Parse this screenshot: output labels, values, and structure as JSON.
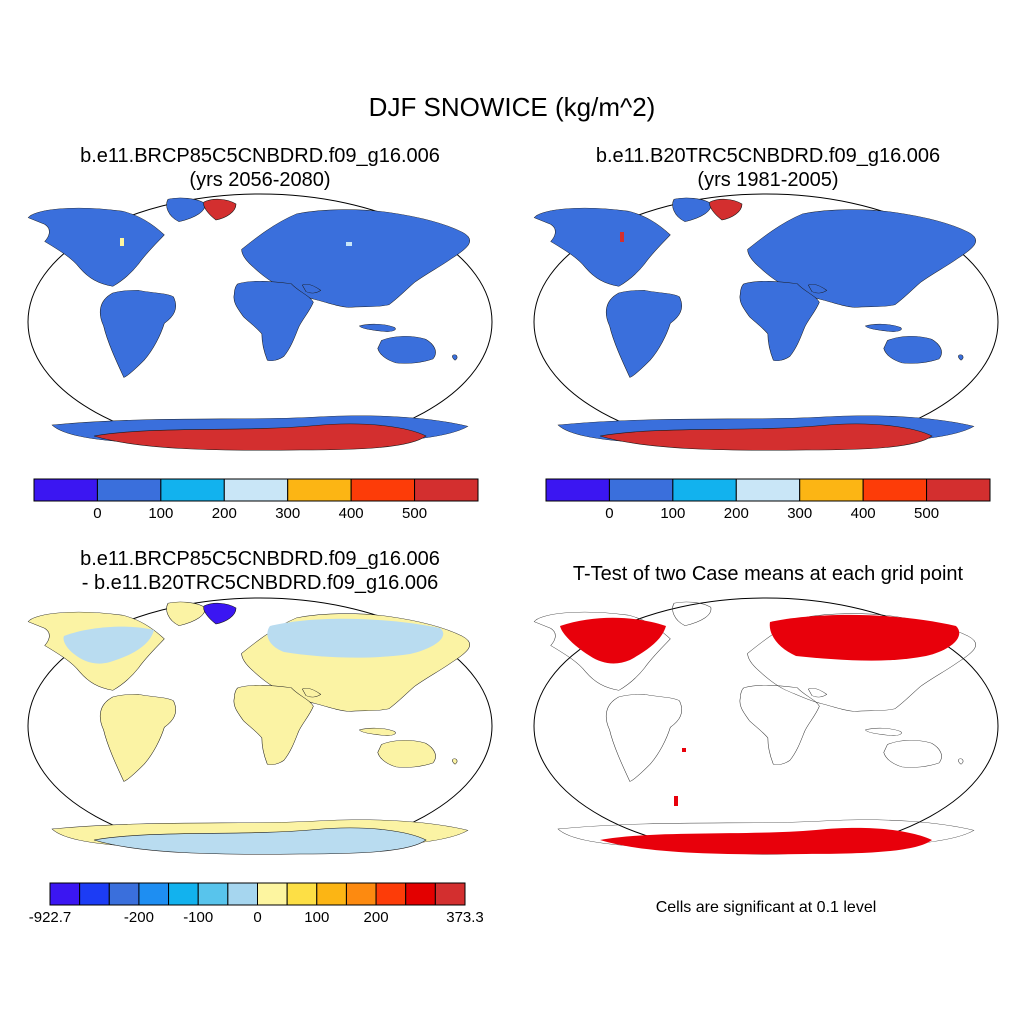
{
  "title": "DJF SNOWICE (kg/m^2)",
  "panels": {
    "top_left": {
      "title_line1": "b.e11.BRCP85C5CNBDRD.f09_g16.006",
      "title_line2": "(yrs 2056-2080)",
      "land_fill": "#3a6fdc",
      "ice_fill": "#d32f2f"
    },
    "top_right": {
      "title_line1": "b.e11.B20TRC5CNBDRD.f09_g16.006",
      "title_line2": "(yrs 1981-2005)",
      "land_fill": "#3a6fdc",
      "ice_fill": "#d32f2f"
    },
    "bottom_left": {
      "title_line1": "b.e11.BRCP85C5CNBDRD.f09_g16.006",
      "title_line2": "- b.e11.B20TRC5CNBDRD.f09_g16.006",
      "land_fill": "#fbf3a4",
      "ice_fill": "#b9dcf0"
    },
    "bottom_right": {
      "title": "T-Test of two Case means at each grid point",
      "note": "Cells are significant at 0.1 level",
      "sig_fill": "#e8000b"
    }
  },
  "colorbars": {
    "top": {
      "colors": [
        "#3b16f2",
        "#3a6fdc",
        "#12b2ee",
        "#c9e6f7",
        "#fcb514",
        "#fd3c08",
        "#d32f2f"
      ],
      "labels": [
        "0",
        "100",
        "200",
        "300",
        "400",
        "500"
      ]
    },
    "diff": {
      "colors": [
        "#3b16f2",
        "#1c3cf5",
        "#3a6fdc",
        "#1e8ef2",
        "#12b2ee",
        "#58c4ec",
        "#a6d6ef",
        "#fdf5a0",
        "#fddf45",
        "#fcb514",
        "#fd8a10",
        "#fd3c08",
        "#e30000",
        "#d32f2f"
      ],
      "labels": [
        "-922.7",
        "-200",
        "-100",
        "0",
        "100",
        "200",
        "373.3"
      ]
    }
  }
}
